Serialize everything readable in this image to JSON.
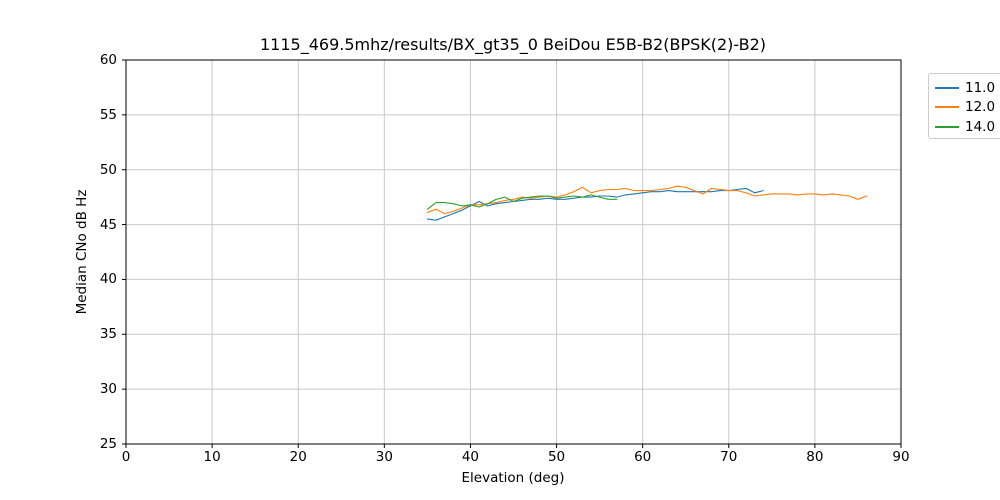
{
  "chart_data": {
    "type": "line",
    "title": "1115_469.5mhz/results/BX_gt35_0 BeiDou E5B-B2(BPSK(2)-B2)",
    "xlabel": "Elevation (deg)",
    "ylabel": "Median CNo dB Hz",
    "xlim": [
      0,
      90
    ],
    "ylim": [
      25,
      60
    ],
    "xticks": [
      0,
      10,
      20,
      30,
      40,
      50,
      60,
      70,
      80,
      90
    ],
    "yticks": [
      25,
      30,
      35,
      40,
      45,
      50,
      55,
      60
    ],
    "grid": true,
    "legend_position": "upper-right-outside",
    "colors": {
      "grid": "#c9c9c9",
      "spine": "#000000",
      "background": "#ffffff"
    },
    "series": [
      {
        "name": "11.0",
        "color": "#1f77b4",
        "x": [
          35,
          36,
          37,
          38,
          39,
          40,
          41,
          42,
          43,
          44,
          45,
          46,
          47,
          48,
          49,
          50,
          51,
          52,
          53,
          54,
          55,
          56,
          57,
          58,
          59,
          60,
          61,
          62,
          63,
          64,
          65,
          66,
          67,
          68,
          69,
          70,
          71,
          72,
          73,
          74
        ],
        "values": [
          45.5,
          45.4,
          45.7,
          46.0,
          46.3,
          46.7,
          47.1,
          46.7,
          46.9,
          47.0,
          47.1,
          47.2,
          47.3,
          47.3,
          47.4,
          47.3,
          47.3,
          47.4,
          47.5,
          47.5,
          47.6,
          47.6,
          47.5,
          47.7,
          47.8,
          47.9,
          48.0,
          48.0,
          48.1,
          48.0,
          48.0,
          48.0,
          48.0,
          48.0,
          48.1,
          48.1,
          48.2,
          48.3,
          47.9,
          48.1
        ]
      },
      {
        "name": "12.0",
        "color": "#ff7f0e",
        "x": [
          35,
          36,
          37,
          38,
          39,
          40,
          41,
          42,
          43,
          44,
          45,
          46,
          47,
          48,
          49,
          50,
          51,
          52,
          53,
          54,
          55,
          56,
          57,
          58,
          59,
          60,
          61,
          62,
          63,
          64,
          65,
          66,
          67,
          68,
          69,
          70,
          71,
          72,
          73,
          74,
          75,
          76,
          77,
          78,
          79,
          80,
          81,
          82,
          83,
          84,
          85,
          86
        ],
        "values": [
          46.1,
          46.4,
          46.0,
          46.2,
          46.5,
          46.8,
          46.8,
          46.9,
          47.0,
          47.2,
          47.3,
          47.5,
          47.4,
          47.5,
          47.6,
          47.5,
          47.7,
          48.0,
          48.4,
          47.9,
          48.1,
          48.2,
          48.2,
          48.3,
          48.1,
          48.1,
          48.1,
          48.2,
          48.3,
          48.5,
          48.4,
          48.1,
          47.8,
          48.3,
          48.2,
          48.1,
          48.1,
          47.9,
          47.6,
          47.7,
          47.8,
          47.8,
          47.8,
          47.7,
          47.8,
          47.8,
          47.7,
          47.8,
          47.7,
          47.6,
          47.3,
          47.6
        ]
      },
      {
        "name": "14.0",
        "color": "#2ca02c",
        "x": [
          35,
          36,
          37,
          38,
          39,
          40,
          41,
          42,
          43,
          44,
          45,
          46,
          47,
          48,
          49,
          50,
          51,
          52,
          53,
          54,
          55,
          56,
          57
        ],
        "values": [
          46.4,
          47.0,
          47.0,
          46.9,
          46.7,
          46.8,
          46.6,
          46.9,
          47.3,
          47.5,
          47.1,
          47.4,
          47.5,
          47.6,
          47.6,
          47.4,
          47.5,
          47.6,
          47.5,
          47.7,
          47.5,
          47.3,
          47.3
        ]
      }
    ]
  }
}
